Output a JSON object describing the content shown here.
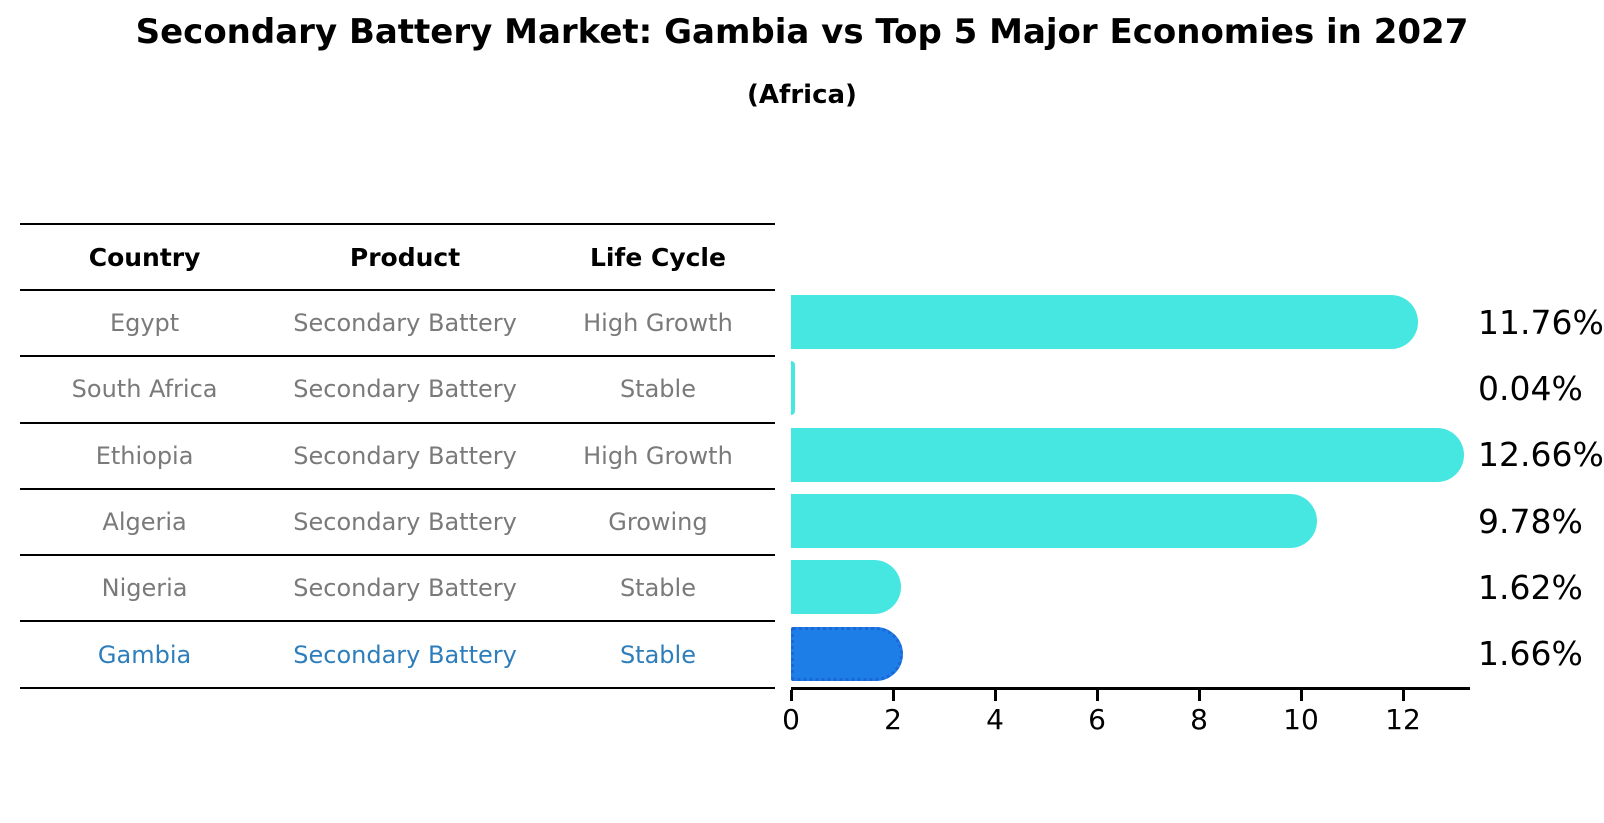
{
  "title": "Secondary Battery Market: Gambia vs Top 5 Major Economies in 2027",
  "subtitle": "(Africa)",
  "table": {
    "headers": [
      "Country",
      "Product",
      "Life Cycle"
    ],
    "rows": [
      {
        "country": "Egypt",
        "product": "Secondary Battery",
        "life_cycle": "High Growth",
        "highlight": false
      },
      {
        "country": "South Africa",
        "product": "Secondary Battery",
        "life_cycle": "Stable",
        "highlight": false
      },
      {
        "country": "Ethiopia",
        "product": "Secondary Battery",
        "life_cycle": "High Growth",
        "highlight": false
      },
      {
        "country": "Algeria",
        "product": "Secondary Battery",
        "life_cycle": "Growing",
        "highlight": false
      },
      {
        "country": "Nigeria",
        "product": "Secondary Battery",
        "life_cycle": "Stable",
        "highlight": false
      },
      {
        "country": "Gambia",
        "product": "Secondary Battery",
        "life_cycle": "Stable",
        "highlight": true
      }
    ]
  },
  "chart_data": {
    "type": "bar",
    "orientation": "horizontal",
    "title": "Secondary Battery Market: Gambia vs Top 5 Major Economies in 2027 (Africa)",
    "categories": [
      "Egypt",
      "South Africa",
      "Ethiopia",
      "Algeria",
      "Nigeria",
      "Gambia"
    ],
    "values": [
      11.76,
      0.04,
      12.66,
      9.78,
      1.62,
      1.66
    ],
    "value_labels": [
      "11.76%",
      "0.04%",
      "12.66%",
      "9.78%",
      "1.62%",
      "1.66%"
    ],
    "x_ticks": [
      0,
      2,
      4,
      6,
      8,
      10,
      12
    ],
    "xlim": [
      0,
      13.31
    ],
    "grid": false,
    "legend": false,
    "highlight_category": "Gambia",
    "colors": {
      "bar": "#46e7e0",
      "highlight_bar": "#1e7ee8",
      "highlight_bar_border": "#1a67d6",
      "highlight_text": "#2e7ebc",
      "table_text": "#7a7a7a",
      "axis": "#000000",
      "background": "#ffffff"
    }
  }
}
